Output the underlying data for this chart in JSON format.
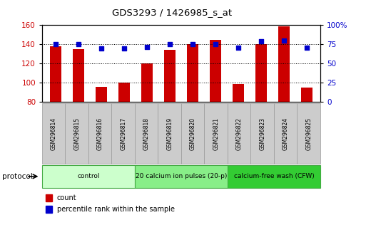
{
  "title": "GDS3293 / 1426985_s_at",
  "samples": [
    "GSM296814",
    "GSM296815",
    "GSM296816",
    "GSM296817",
    "GSM296818",
    "GSM296819",
    "GSM296820",
    "GSM296821",
    "GSM296822",
    "GSM296823",
    "GSM296824",
    "GSM296825"
  ],
  "counts": [
    138,
    135,
    96,
    100,
    120,
    134,
    140,
    145,
    99,
    140,
    159,
    95
  ],
  "percentile_ranks": [
    75,
    75,
    70,
    70,
    72,
    75,
    75,
    75,
    71,
    79,
    80,
    71
  ],
  "ylim_left": [
    80,
    160
  ],
  "ylim_right": [
    0,
    100
  ],
  "yticks_left": [
    80,
    100,
    120,
    140,
    160
  ],
  "yticks_right": [
    0,
    25,
    50,
    75,
    100
  ],
  "ytick_labels_right": [
    "0",
    "25",
    "50",
    "75",
    "100%"
  ],
  "bar_color": "#cc0000",
  "dot_color": "#0000cc",
  "bar_width": 0.5,
  "groups": [
    {
      "label": "control",
      "start": 0,
      "end": 3,
      "color": "#ccffcc",
      "edge": "#44aa44"
    },
    {
      "label": "20 calcium ion pulses (20-p)",
      "start": 4,
      "end": 7,
      "color": "#88ee88",
      "edge": "#44aa44"
    },
    {
      "label": "calcium-free wash (CFW)",
      "start": 8,
      "end": 11,
      "color": "#33cc33",
      "edge": "#44aa44"
    }
  ],
  "protocol_label": "protocol",
  "legend_count_label": "count",
  "legend_percentile_label": "percentile rank within the sample",
  "tick_bg_color": "#cccccc",
  "tick_edge_color": "#999999"
}
